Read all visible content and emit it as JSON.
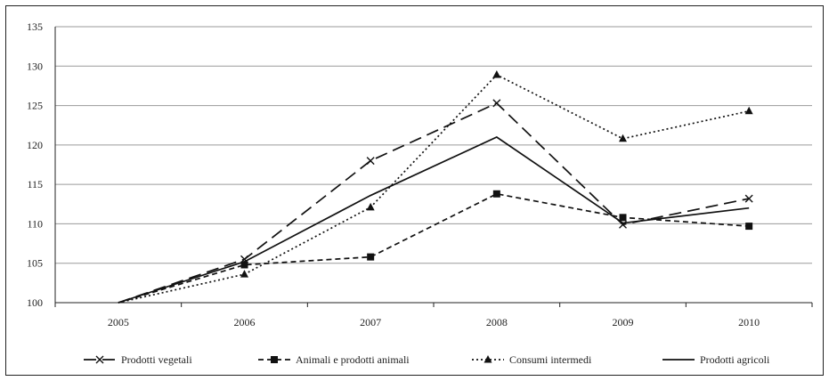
{
  "chart_data": {
    "type": "line",
    "title": "",
    "xlabel": "",
    "ylabel": "",
    "x": [
      "2005",
      "2006",
      "2007",
      "2008",
      "2009",
      "2010"
    ],
    "ylim": [
      100,
      135
    ],
    "yticks": [
      100,
      105,
      110,
      115,
      120,
      125,
      130,
      135
    ],
    "grid": true,
    "legend_position": "bottom",
    "series": [
      {
        "name": "Prodotti vegetali",
        "values": [
          100,
          105.5,
          118,
          125.3,
          109.9,
          113.2
        ],
        "marker": "x",
        "dash": "dashed-long"
      },
      {
        "name": "Animali e prodotti animali",
        "values": [
          100,
          104.8,
          105.8,
          113.8,
          110.8,
          109.7
        ],
        "marker": "square",
        "dash": "dashed"
      },
      {
        "name": "Consumi intermedi",
        "values": [
          100,
          103.6,
          112.1,
          128.9,
          120.8,
          124.3
        ],
        "marker": "triangle",
        "dash": "dotted"
      },
      {
        "name": "Prodotti agricoli",
        "values": [
          100,
          105.2,
          113.6,
          121,
          110.1,
          112
        ],
        "marker": "none",
        "dash": "solid"
      }
    ]
  }
}
